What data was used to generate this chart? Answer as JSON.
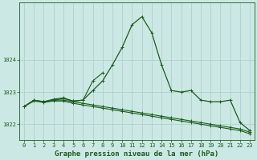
{
  "title": "Graphe pression niveau de la mer (hPa)",
  "background_color": "#cce8e4",
  "grid_color": "#aaccc8",
  "line_color": "#1a5c1a",
  "x_labels": [
    "0",
    "1",
    "2",
    "3",
    "4",
    "5",
    "6",
    "7",
    "8",
    "9",
    "10",
    "11",
    "12",
    "13",
    "14",
    "15",
    "16",
    "17",
    "18",
    "19",
    "20",
    "21",
    "22",
    "23"
  ],
  "ylim": [
    1021.5,
    1025.8
  ],
  "yticks": [
    1022,
    1023,
    1024
  ],
  "ytick_labels": [
    "1022",
    "1023",
    "1024"
  ],
  "series1_x": [
    0,
    1,
    2,
    3,
    4,
    5,
    6,
    7,
    8,
    9,
    10,
    11,
    12,
    13,
    14,
    15,
    16,
    17,
    18,
    19,
    20,
    21,
    22,
    23
  ],
  "series1_y": [
    1022.55,
    1022.75,
    1022.7,
    1022.75,
    1022.75,
    1022.7,
    1022.65,
    1022.6,
    1022.55,
    1022.5,
    1022.45,
    1022.4,
    1022.35,
    1022.3,
    1022.25,
    1022.2,
    1022.15,
    1022.1,
    1022.05,
    1022.0,
    1021.95,
    1021.9,
    1021.85,
    1021.75
  ],
  "series2_x": [
    0,
    1,
    2,
    3,
    4,
    5,
    6,
    7,
    8,
    9,
    10,
    11,
    12,
    13,
    14,
    15,
    16,
    17,
    18,
    19,
    20,
    21,
    22,
    23
  ],
  "series2_y": [
    1022.55,
    1022.75,
    1022.7,
    1022.75,
    1022.8,
    1022.72,
    1022.75,
    1023.05,
    1023.35,
    1023.85,
    1024.4,
    1025.1,
    1025.35,
    1024.85,
    1023.85,
    1023.05,
    1023.0,
    1023.05,
    1022.75,
    1022.7,
    1022.7,
    1022.75,
    1022.05,
    1021.8
  ],
  "series3_x": [
    2,
    3,
    4,
    5,
    6,
    7,
    8
  ],
  "series3_y": [
    1022.7,
    1022.78,
    1022.82,
    1022.72,
    1022.75,
    1023.35,
    1023.6
  ],
  "series4_x": [
    0,
    1,
    2,
    3,
    4,
    5,
    6,
    7,
    8,
    9,
    10,
    11,
    12,
    13,
    14,
    15,
    16,
    17,
    18,
    19,
    20,
    21,
    22,
    23
  ],
  "series4_y": [
    1022.55,
    1022.72,
    1022.68,
    1022.72,
    1022.72,
    1022.65,
    1022.6,
    1022.55,
    1022.5,
    1022.45,
    1022.4,
    1022.35,
    1022.3,
    1022.25,
    1022.2,
    1022.15,
    1022.1,
    1022.05,
    1022.0,
    1021.95,
    1021.9,
    1021.85,
    1021.8,
    1021.7
  ],
  "title_fontsize": 6.5,
  "tick_fontsize": 5.0
}
